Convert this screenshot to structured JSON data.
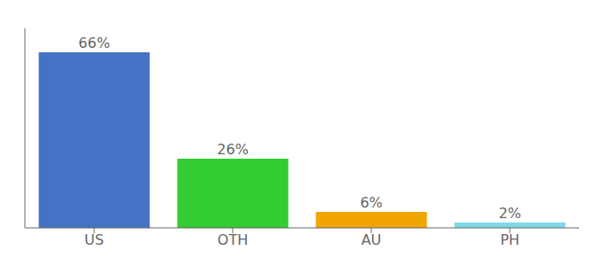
{
  "chart_data": {
    "type": "bar",
    "categories": [
      "US",
      "OTH",
      "AU",
      "PH"
    ],
    "values": [
      66,
      26,
      6,
      2
    ],
    "value_labels": [
      "66%",
      "26%",
      "6%",
      "2%"
    ],
    "colors": [
      "#4472c4",
      "#33cc33",
      "#f0a500",
      "#7fd8e8"
    ],
    "ylim": [
      0,
      75
    ],
    "data_labels": true,
    "tick_labels": "x",
    "grid": false
  }
}
